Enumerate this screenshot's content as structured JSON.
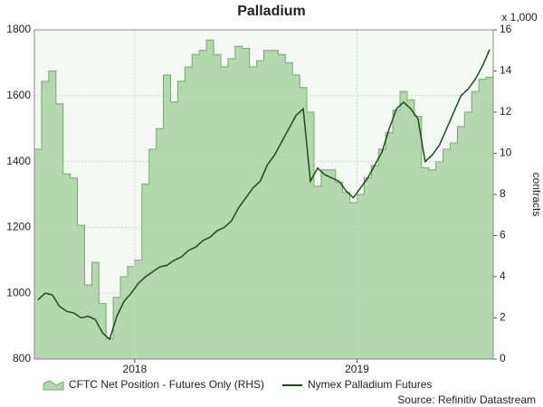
{
  "chart_data": {
    "type": "line",
    "title": "Palladium",
    "y2_unit_note": "x 1,000",
    "y2label": "contracts",
    "source": "Source: Refinitiv Datastream",
    "categories": [
      null,
      null,
      null,
      null,
      null,
      null,
      null,
      null,
      null,
      null,
      null,
      null,
      null,
      null,
      "2018",
      null,
      null,
      null,
      null,
      null,
      null,
      null,
      null,
      null,
      null,
      null,
      null,
      null,
      null,
      null,
      null,
      null,
      null,
      null,
      null,
      null,
      null,
      null,
      null,
      null,
      null,
      null,
      null,
      null,
      null,
      "2019",
      null,
      null,
      null,
      null,
      null,
      null,
      null,
      null,
      null,
      null,
      null,
      null,
      null,
      null,
      null,
      null,
      null,
      null
    ],
    "series": [
      {
        "name": "CFTC Net Position - Futures Only (RHS)",
        "type": "area",
        "axis": "y2",
        "color": "#b3d8ae",
        "line_color": "#73a96d",
        "values": [
          10.2,
          13.5,
          14,
          12.4,
          9,
          8.8,
          6.5,
          3.6,
          4.7,
          2.7,
          1,
          3,
          4,
          4.5,
          4.8,
          8.5,
          10.2,
          11.2,
          13.8,
          12.5,
          13.5,
          14.2,
          14.8,
          15,
          15.5,
          14.8,
          14.2,
          14.6,
          15.2,
          15.1,
          14.2,
          14.5,
          15,
          15,
          14.8,
          14.4,
          13.8,
          13.2,
          12,
          8.4,
          9.2,
          9.2,
          8.6,
          8.1,
          7.6,
          8,
          8.8,
          9.4,
          10.2,
          11,
          12.1,
          13,
          12.6,
          11.8,
          9.3,
          9.2,
          9.6,
          10.2,
          10.5,
          11.3,
          12,
          13,
          13.6,
          13.7
        ]
      },
      {
        "name": "Nymex Palladium Futures",
        "type": "line",
        "axis": "y",
        "color": "#1b4d1b",
        "values": [
          980,
          1000,
          995,
          960,
          945,
          940,
          925,
          930,
          920,
          880,
          860,
          930,
          975,
          1000,
          1030,
          1050,
          1065,
          1080,
          1085,
          1100,
          1110,
          1130,
          1140,
          1160,
          1170,
          1190,
          1200,
          1220,
          1260,
          1290,
          1320,
          1340,
          1390,
          1420,
          1460,
          1500,
          1540,
          1560,
          1340,
          1380,
          1360,
          1350,
          1340,
          1310,
          1290,
          1320,
          1350,
          1390,
          1430,
          1500,
          1560,
          1580,
          1560,
          1530,
          1400,
          1420,
          1450,
          1500,
          1550,
          1600,
          1620,
          1650,
          1690,
          1740
        ]
      }
    ],
    "ylim": [
      800,
      1800
    ],
    "yticks": [
      800,
      1000,
      1200,
      1400,
      1600,
      1800
    ],
    "y2lim": [
      0,
      16
    ],
    "y2ticks": [
      0,
      2,
      4,
      6,
      8,
      10,
      12,
      14,
      16
    ],
    "grid": true
  }
}
